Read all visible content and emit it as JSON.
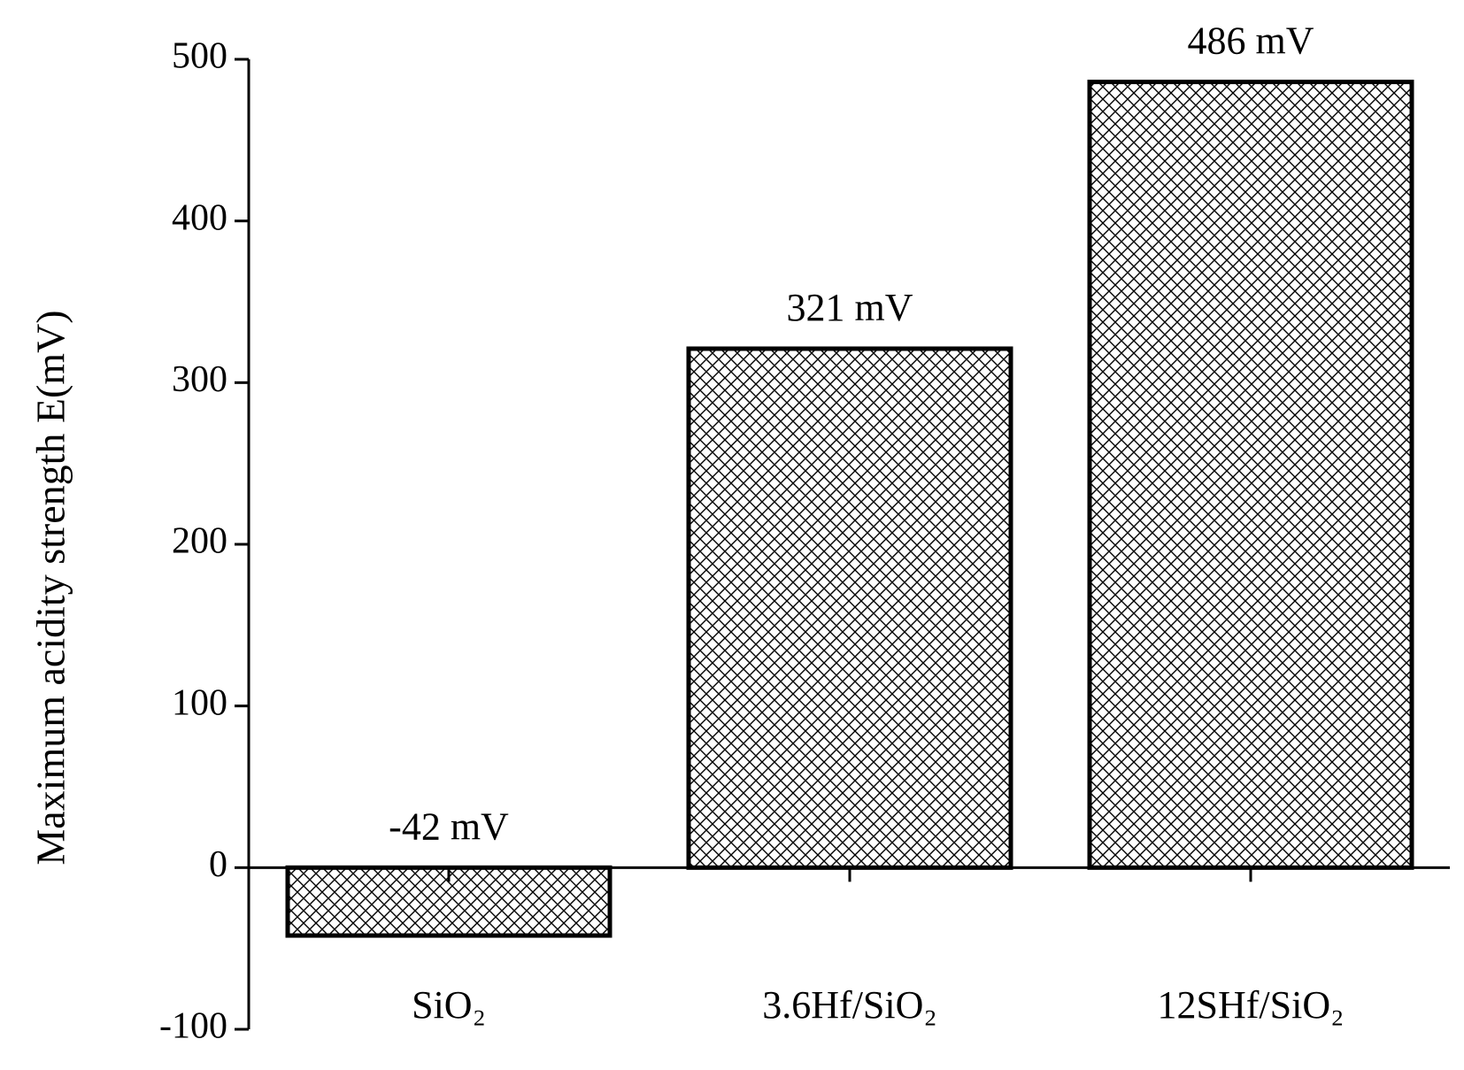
{
  "chart_data": {
    "type": "bar",
    "y_label": "Maximum acidity strength E(mV)",
    "categories": [
      "SiO₂",
      "3.6Hf/SiO₂",
      "12SHf/SiO₂"
    ],
    "values": [
      -42,
      321,
      486
    ],
    "value_labels": [
      "-42 mV",
      "321 mV",
      "486 mV"
    ],
    "color": "#000000",
    "ylim": [
      -100,
      500
    ],
    "yticks": [
      -100,
      0,
      100,
      200,
      300,
      400,
      500
    ],
    "grid": false
  }
}
